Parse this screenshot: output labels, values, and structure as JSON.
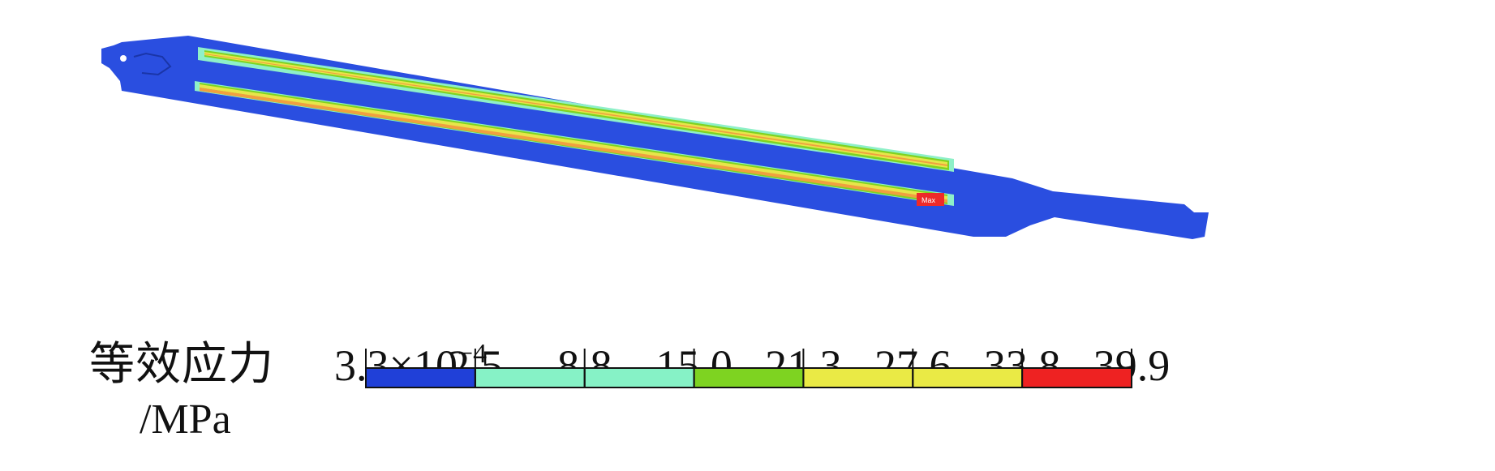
{
  "legend": {
    "title": "等效应力",
    "unit": "/MPa",
    "min_label_base": "3.3×10",
    "min_label_exp": "−4",
    "ticks": [
      "2.5",
      "8.8",
      "15.0",
      "21.3",
      "27.6",
      "33.8",
      "39.9"
    ],
    "bands": [
      {
        "from": "3.3×10⁻⁴",
        "to": "2.5",
        "color": "#2040d8"
      },
      {
        "from": "2.5",
        "to": "8.8",
        "color": "#86f2c6"
      },
      {
        "from": "8.8",
        "to": "15.0",
        "color": "#86f2c6"
      },
      {
        "from": "15.0",
        "to": "21.3",
        "color": "#7ed321"
      },
      {
        "from": "21.3",
        "to": "27.6",
        "color": "#eaea45"
      },
      {
        "from": "27.6",
        "to": "33.8",
        "color": "#eaea45"
      },
      {
        "from": "33.8",
        "to": "39.9",
        "color": "#ee2222"
      }
    ]
  },
  "model": {
    "body_color": "#2a4ee0",
    "stripe_outer_color": "#f0a040",
    "stripe_yellow_color": "#e6e64a",
    "stripe_green_color": "#7ed321",
    "stripe_cyan_color": "#8ef0c8",
    "hotspot_color": "#ee2a2a",
    "hotspot_label": "Max"
  }
}
